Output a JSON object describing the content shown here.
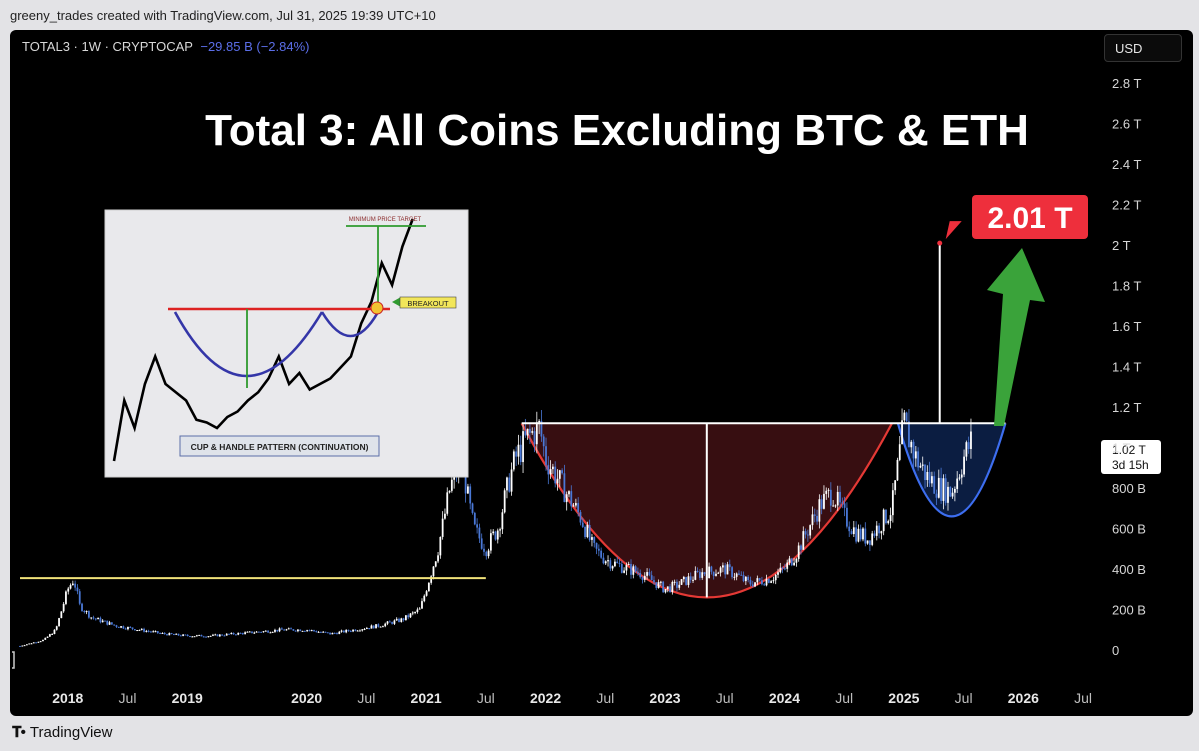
{
  "header": {
    "attribution": "greeny_trades created with TradingView.com, Jul 31, 2025 19:39 UTC+10"
  },
  "symbol": {
    "name": "TOTAL3 · 1W · CRYPTOCAP",
    "change": "−29.85 B (−2.84%)"
  },
  "currency_button": {
    "label": "USD"
  },
  "footer": {
    "brand": "TradingView"
  },
  "colors": {
    "candle_up": "#ffffff",
    "candle_down": "#4a78d6",
    "cup_fill": "#3a0f12",
    "cup_line": "#e53935",
    "handle_fill": "#0c1f45",
    "handle_line": "#3d6ef0",
    "target_label": "#ee2f3c",
    "arrow": "#3aa33a",
    "resistance": "#ffffff",
    "support": "#f1e27a"
  },
  "chart_data": [
    {
      "type": "line",
      "title": "Total 3: All Coins Excluding BTC & ETH",
      "ylabel": "",
      "xlabel": "",
      "ylim": [
        0,
        2.9
      ],
      "y_unit": "T USD",
      "y_ticks": [
        0,
        0.2,
        0.4,
        0.6,
        0.8,
        1.0,
        1.2,
        1.4,
        1.6,
        1.8,
        2.0,
        2.2,
        2.4,
        2.6,
        2.8
      ],
      "y_tick_labels": [
        "0",
        "200 B",
        "400 B",
        "600 B",
        "800 B",
        "1 T",
        "1.2 T",
        "1.4 T",
        "1.6 T",
        "1.8 T",
        "2 T",
        "2.2 T",
        "2.4 T",
        "2.6 T",
        "2.8 T"
      ],
      "x_ticks": [
        2018,
        2018.5,
        2019,
        2020,
        2020.5,
        2021,
        2021.5,
        2022,
        2022.5,
        2023,
        2023.5,
        2024,
        2024.5,
        2025,
        2025.5,
        2026,
        2026.5
      ],
      "x_tick_labels": [
        "2018",
        "Jul",
        "2019",
        "2020",
        "Jul",
        "2021",
        "Jul",
        "2022",
        "Jul",
        "2023",
        "Jul",
        "2024",
        "Jul",
        "2025",
        "Jul",
        "2026",
        "Jul"
      ],
      "series": [
        {
          "x": [
            2017.6,
            2017.8,
            2017.9,
            2018.0,
            2018.05,
            2018.1,
            2018.2,
            2018.4,
            2018.6,
            2018.8,
            2019.0,
            2019.2,
            2019.4,
            2019.6,
            2019.8,
            2020.0,
            2020.2,
            2020.4,
            2020.6,
            2020.8,
            2020.95,
            2021.0,
            2021.1,
            2021.2,
            2021.3,
            2021.35,
            2021.4,
            2021.5,
            2021.6,
            2021.7,
            2021.75,
            2021.85,
            2021.95,
            2022.0,
            2022.1,
            2022.2,
            2022.3,
            2022.4,
            2022.5,
            2022.6,
            2022.8,
            2023.0,
            2023.1,
            2023.2,
            2023.3,
            2023.5,
            2023.6,
            2023.7,
            2023.8,
            2023.9,
            2024.0,
            2024.1,
            2024.2,
            2024.3,
            2024.4,
            2024.5,
            2024.6,
            2024.7,
            2024.8,
            2024.9,
            2025.0,
            2025.1,
            2025.2,
            2025.3,
            2025.4,
            2025.5,
            2025.58
          ],
          "y": [
            0.02,
            0.05,
            0.1,
            0.3,
            0.35,
            0.22,
            0.16,
            0.12,
            0.1,
            0.08,
            0.07,
            0.07,
            0.08,
            0.09,
            0.1,
            0.1,
            0.08,
            0.1,
            0.12,
            0.15,
            0.2,
            0.3,
            0.5,
            0.8,
            0.95,
            0.75,
            0.6,
            0.5,
            0.6,
            0.85,
            0.95,
            1.05,
            1.1,
            0.95,
            0.85,
            0.75,
            0.65,
            0.5,
            0.45,
            0.42,
            0.38,
            0.3,
            0.32,
            0.35,
            0.38,
            0.4,
            0.37,
            0.33,
            0.34,
            0.36,
            0.4,
            0.48,
            0.6,
            0.72,
            0.78,
            0.66,
            0.58,
            0.55,
            0.62,
            0.7,
            1.12,
            0.95,
            0.85,
            0.8,
            0.78,
            0.95,
            1.05
          ]
        }
      ],
      "annotations": [
        {
          "type": "hline",
          "y": 0.355,
          "x": [
            2017.6,
            2021.5
          ],
          "label": ""
        },
        {
          "type": "hline",
          "y": 1.12,
          "x": [
            2021.8,
            2025.85
          ],
          "label": ""
        },
        {
          "type": "cup",
          "x": [
            2021.8,
            2024.9
          ],
          "bottom": 0.26,
          "label": ""
        },
        {
          "type": "handle",
          "x": [
            2024.95,
            2025.85
          ],
          "bottom": 0.66,
          "label": ""
        },
        {
          "type": "target",
          "value": "2.01 T"
        },
        {
          "type": "last_price",
          "value": "1.02 T",
          "countdown": "3d 15h"
        }
      ]
    },
    {
      "type": "line",
      "title": "CUP & HANDLE PATTERN (CONTINUATION)",
      "annotations": [
        "MINIMUM PRICE TARGET",
        "BREAKOUT"
      ],
      "series": [
        {
          "x": [
            0,
            1,
            2,
            3,
            4,
            5,
            6,
            7,
            8,
            9,
            10,
            11,
            12,
            13,
            14,
            15,
            16,
            17,
            18,
            19,
            20,
            21,
            22,
            23,
            24,
            25,
            26,
            27,
            28,
            29
          ],
          "y": [
            0,
            22,
            12,
            28,
            38,
            28,
            25,
            22,
            15,
            14,
            12,
            16,
            18,
            22,
            25,
            30,
            38,
            28,
            32,
            26,
            28,
            30,
            34,
            38,
            50,
            58,
            72,
            64,
            78,
            88
          ]
        }
      ]
    }
  ]
}
